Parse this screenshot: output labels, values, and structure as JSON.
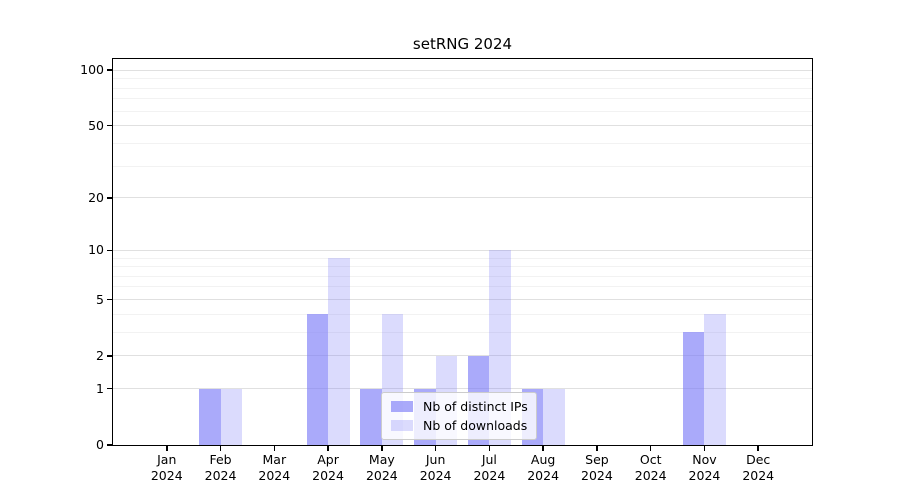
{
  "chart_data": {
    "type": "bar",
    "title": "setRNG 2024",
    "categories": [
      "Jan",
      "Feb",
      "Mar",
      "Apr",
      "May",
      "Jun",
      "Jul",
      "Aug",
      "Sep",
      "Oct",
      "Nov",
      "Dec"
    ],
    "x_sublabel": "2024",
    "series": [
      {
        "name": "Nb of distinct IPs",
        "color": "rgba(125,125,247,0.65)",
        "values": [
          0,
          1,
          0,
          4,
          1,
          1,
          2,
          1,
          0,
          0,
          3,
          0
        ]
      },
      {
        "name": "Nb of downloads",
        "color": "rgba(125,125,247,0.28)",
        "values": [
          0,
          1,
          0,
          9,
          4,
          2,
          10,
          1,
          0,
          0,
          4,
          0
        ]
      }
    ],
    "yscale": "log1p",
    "ylim": [
      0,
      115
    ],
    "y_ticks": [
      0,
      1,
      2,
      5,
      10,
      20,
      50,
      100
    ],
    "y_minor_ticks": [
      3,
      4,
      6,
      7,
      8,
      9,
      30,
      40,
      60,
      70,
      80,
      90
    ],
    "grid": {
      "major_color": "#e0e0e0",
      "minor_color": "#f2f2f2"
    },
    "axis_color": "#000000",
    "legend": {
      "entries": [
        "Nb of distinct IPs",
        "Nb of downloads"
      ],
      "background": "rgba(255,255,255,0.8)",
      "border_color": "#cccccc",
      "position": "inside-bottom-center"
    }
  }
}
